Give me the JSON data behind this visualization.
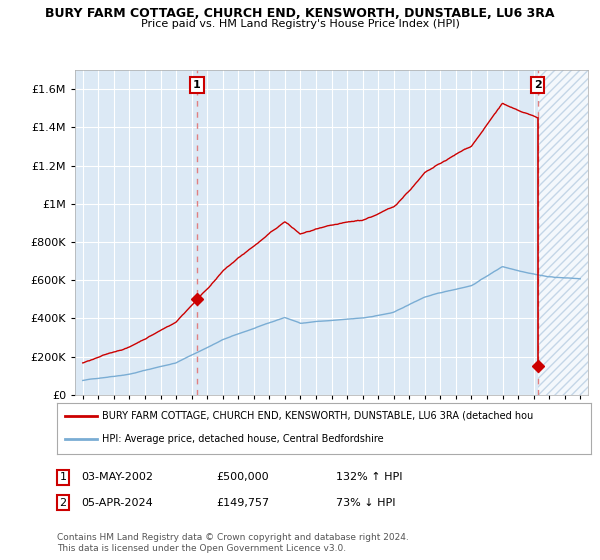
{
  "title": "BURY FARM COTTAGE, CHURCH END, KENSWORTH, DUNSTABLE, LU6 3RA",
  "subtitle": "Price paid vs. HM Land Registry's House Price Index (HPI)",
  "bg_color": "#ffffff",
  "plot_bg_color": "#dce9f5",
  "grid_color": "#ffffff",
  "sale1_date": 2002.34,
  "sale1_price": 500000,
  "sale2_date": 2024.26,
  "sale2_price": 149757,
  "red_line_color": "#cc0000",
  "blue_line_color": "#7aadd4",
  "dashed_line_color": "#e08080",
  "xmin": 1994.5,
  "xmax": 2027.5,
  "ymin": 0,
  "ymax": 1700000,
  "yticks": [
    0,
    200000,
    400000,
    600000,
    800000,
    1000000,
    1200000,
    1400000,
    1600000
  ],
  "ytick_labels": [
    "£0",
    "£200K",
    "£400K",
    "£600K",
    "£800K",
    "£1M",
    "£1.2M",
    "£1.4M",
    "£1.6M"
  ],
  "xticks": [
    1995,
    1996,
    1997,
    1998,
    1999,
    2000,
    2001,
    2002,
    2003,
    2004,
    2005,
    2006,
    2007,
    2008,
    2009,
    2010,
    2011,
    2012,
    2013,
    2014,
    2015,
    2016,
    2017,
    2018,
    2019,
    2020,
    2021,
    2022,
    2023,
    2024,
    2025,
    2026,
    2027
  ],
  "legend_line1": "BURY FARM COTTAGE, CHURCH END, KENSWORTH, DUNSTABLE, LU6 3RA (detached hou",
  "legend_line2": "HPI: Average price, detached house, Central Bedfordshire",
  "note_line1": "Contains HM Land Registry data © Crown copyright and database right 2024.",
  "note_line2": "This data is licensed under the Open Government Licence v3.0."
}
